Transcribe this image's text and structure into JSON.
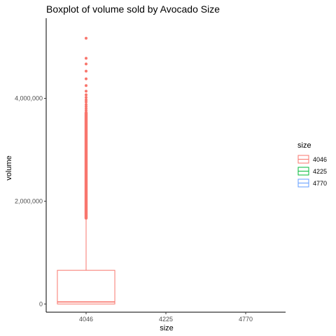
{
  "chart_data": {
    "type": "boxplot",
    "title": "Boxplot of volume sold by Avocado Size",
    "xlabel": "size",
    "ylabel": "volume",
    "categories": [
      "4046",
      "4225",
      "4770"
    ],
    "ylim": [
      -160000,
      5560000
    ],
    "yticks": [
      0,
      2000000,
      4000000
    ],
    "ytick_labels": [
      "0",
      "2,000,000",
      "4,000,000"
    ],
    "grid": false,
    "legend": {
      "title": "size",
      "position": "right",
      "entries": [
        {
          "label": "4046",
          "color": "#F8766D"
        },
        {
          "label": "4225",
          "color": "#00BA38"
        },
        {
          "label": "4770",
          "color": "#619CFF"
        }
      ]
    },
    "boxes": [
      {
        "category": "4046",
        "color": "#F8766D",
        "min": 0,
        "q1": 0,
        "median": 40000,
        "q3": 655000,
        "max": 1640000,
        "outlier_band": [
          1640000,
          3750000
        ],
        "outliers": [
          3760000,
          3800000,
          3840000,
          3880000,
          3930000,
          3970000,
          4020000,
          4070000,
          4140000,
          4250000,
          4380000,
          4530000,
          4670000,
          4780000,
          5170000
        ]
      }
    ]
  }
}
